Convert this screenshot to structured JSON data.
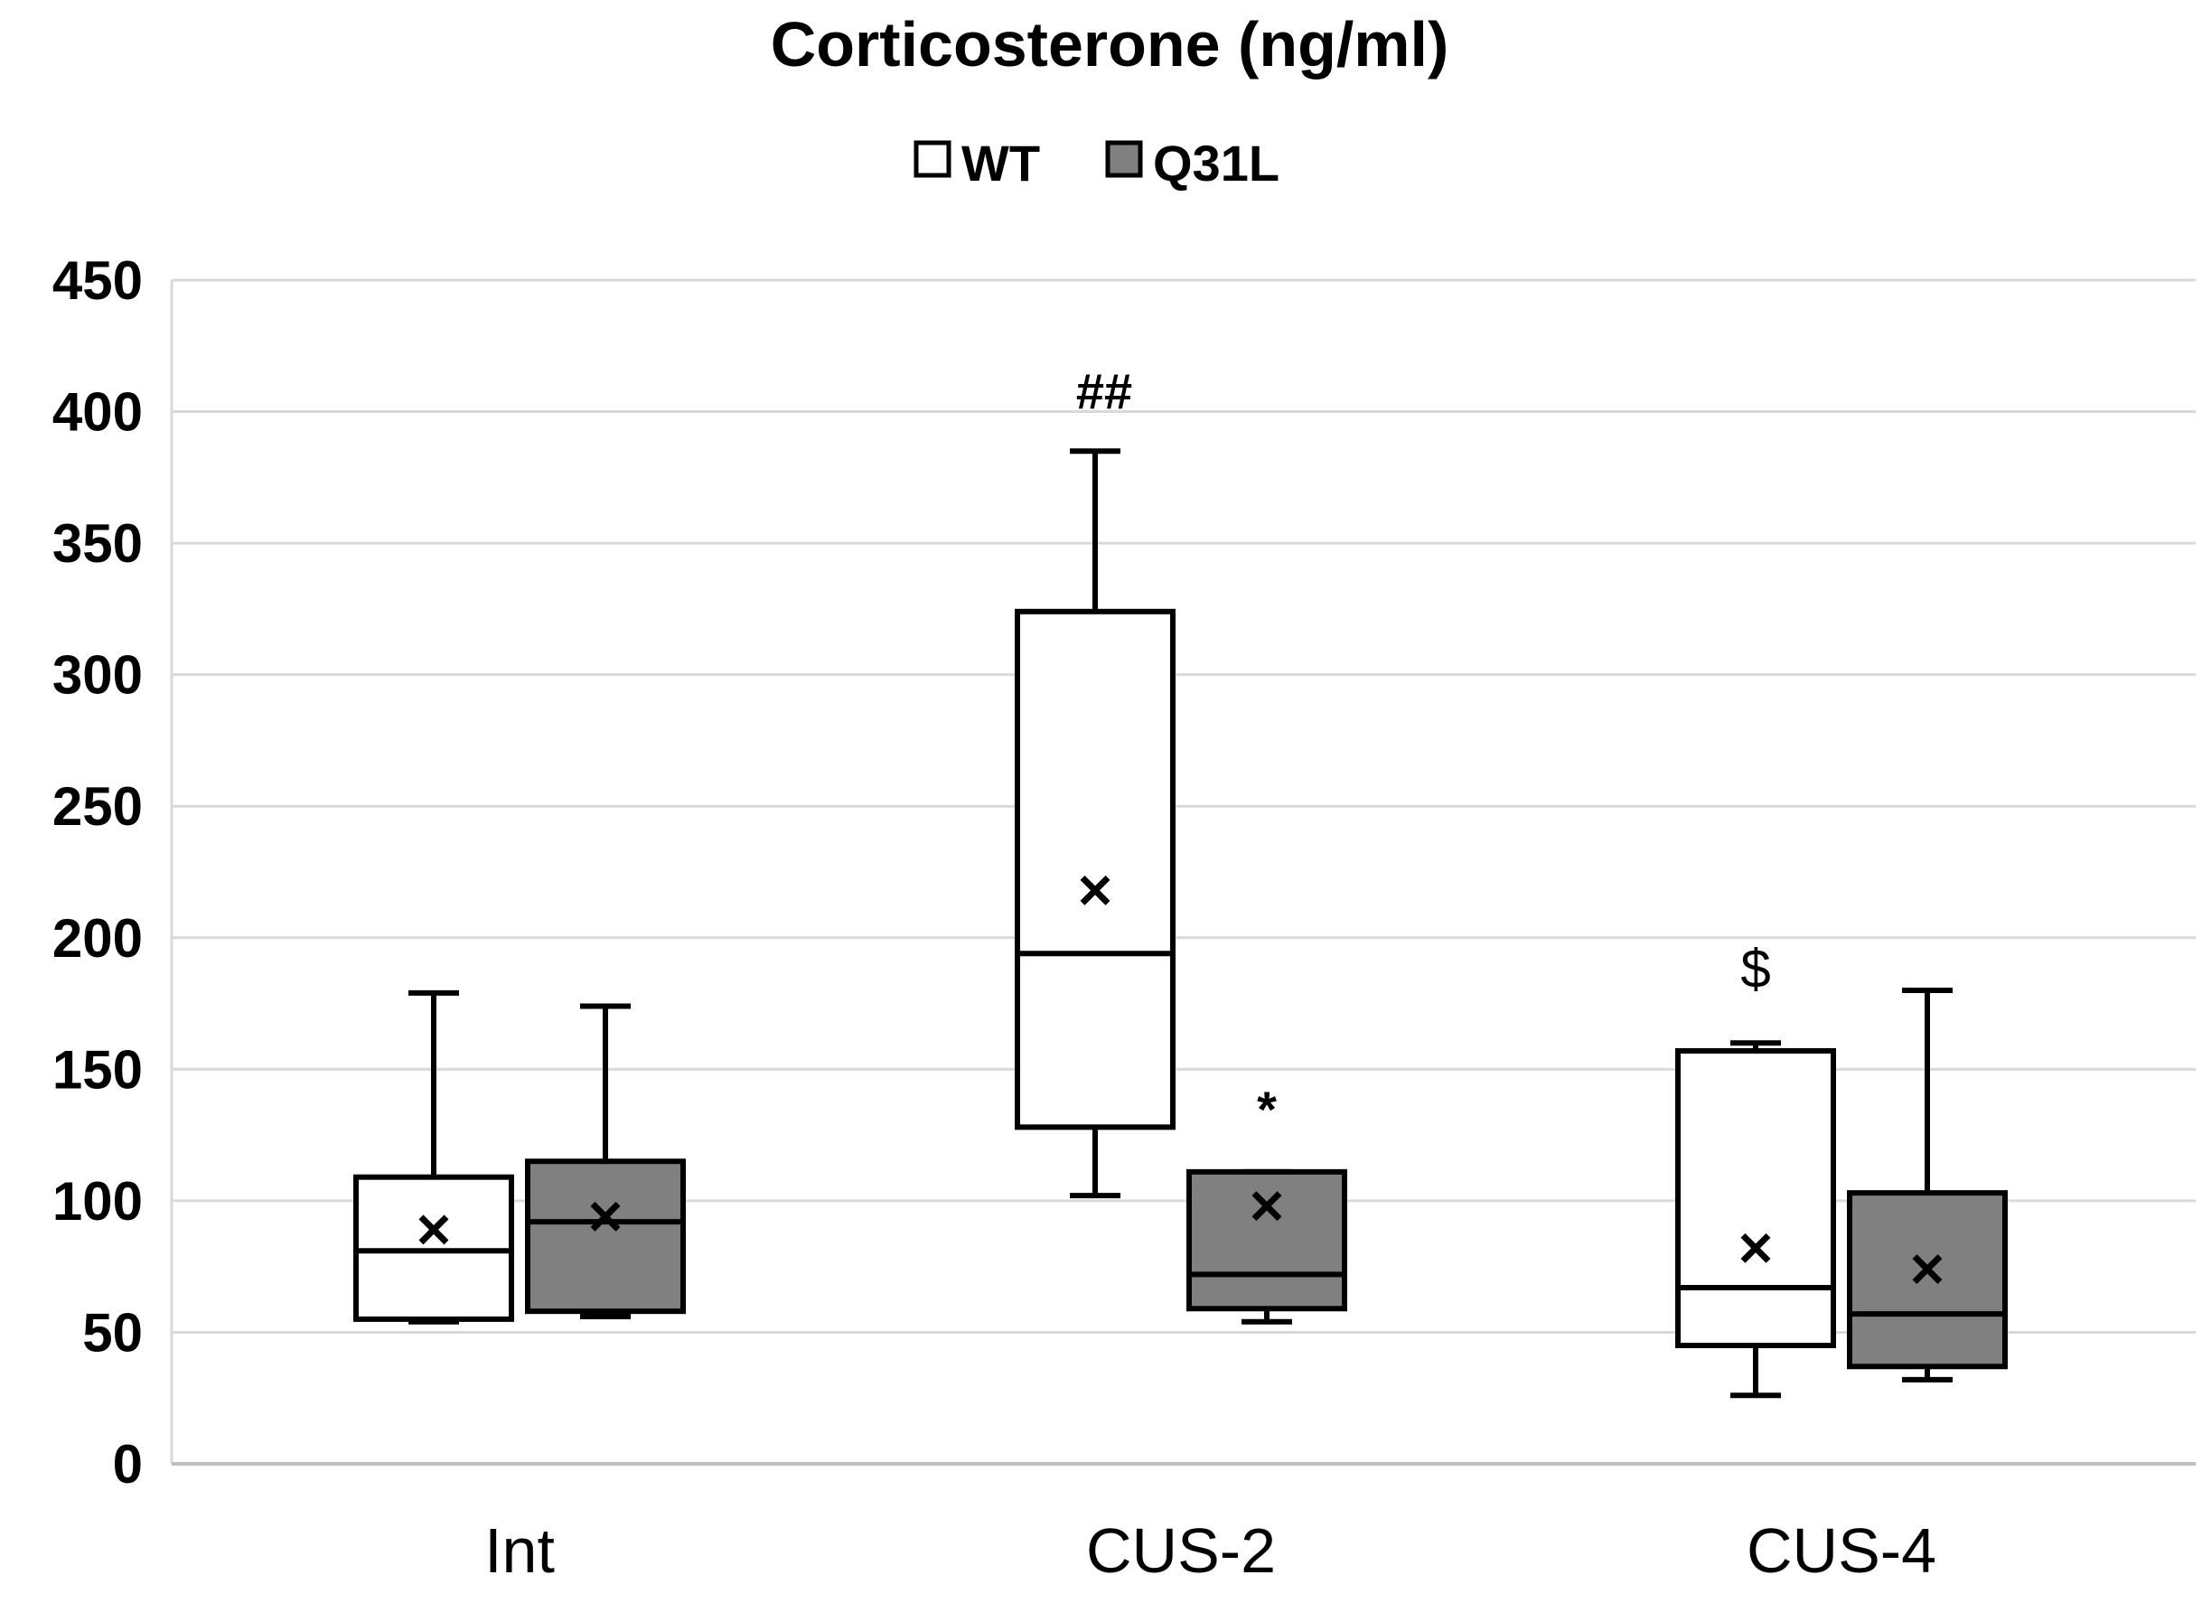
{
  "chart_data": {
    "type": "box",
    "title": "Corticosterone (ng/ml)",
    "xlabel": "",
    "ylabel": "",
    "ylim": [
      0,
      450
    ],
    "yticks": [
      0,
      50,
      100,
      150,
      200,
      250,
      300,
      350,
      400,
      450
    ],
    "grid": true,
    "legend_position": "top-center",
    "categories": [
      "Int",
      "CUS-2",
      "CUS-4"
    ],
    "series": [
      {
        "name": "WT",
        "color": "#ffffff",
        "boxes": [
          {
            "category": "Int",
            "min": 54,
            "q1": 55,
            "median": 81,
            "q3": 109,
            "max": 179,
            "mean": 89
          },
          {
            "category": "CUS-2",
            "min": 102,
            "q1": 128,
            "median": 194,
            "q3": 324,
            "max": 385,
            "mean": 218
          },
          {
            "category": "CUS-4",
            "min": 26,
            "q1": 45,
            "median": 67,
            "q3": 157,
            "max": 160,
            "mean": 82
          }
        ]
      },
      {
        "name": "Q31L",
        "color": "#808080",
        "boxes": [
          {
            "category": "Int",
            "min": 56,
            "q1": 58,
            "median": 92,
            "q3": 115,
            "max": 174,
            "mean": 94
          },
          {
            "category": "CUS-2",
            "min": 54,
            "q1": 59,
            "median": 72,
            "q3": 111,
            "max": 111,
            "mean": 98
          },
          {
            "category": "CUS-4",
            "min": 32,
            "q1": 37,
            "median": 57,
            "q3": 103,
            "max": 180,
            "mean": 74
          }
        ]
      }
    ],
    "annotations": [
      {
        "text": "##",
        "category": "CUS-2",
        "series": "WT",
        "y": 408
      },
      {
        "text": "*",
        "category": "CUS-2",
        "series": "Q31L",
        "y": 135
      },
      {
        "text": "$",
        "category": "CUS-4",
        "series": "WT",
        "y": 188
      }
    ]
  }
}
